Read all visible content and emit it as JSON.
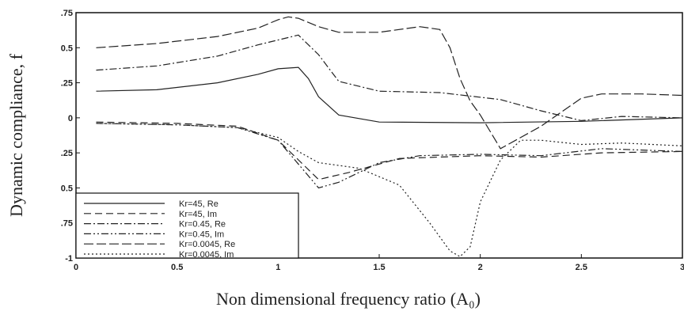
{
  "chart_data": {
    "type": "line",
    "title": "",
    "xlabel": "Non dimensional frequency ratio (A₀)",
    "ylabel": "Dynamic compliance, f",
    "xlim": [
      0,
      3
    ],
    "ylim": [
      -1,
      0.75
    ],
    "x_ticks": [
      "0",
      "0.5",
      "1",
      "1.5",
      "2",
      "2.5",
      "3"
    ],
    "y_ticks": [
      {
        "value": 0.75,
        "label": ".75"
      },
      {
        "value": 0.5,
        "label": "0.5"
      },
      {
        "value": 0.25,
        "label": ".25"
      },
      {
        "value": 0,
        "label": "0"
      },
      {
        "value": -0.25,
        "label": ".25"
      },
      {
        "value": -0.5,
        "label": "0.5"
      },
      {
        "value": -0.75,
        "label": ".75"
      },
      {
        "value": -1,
        "label": "-1"
      }
    ],
    "grid": false,
    "legend_position": "bottom-left",
    "series": [
      {
        "name": "Kr=45, Re",
        "style": "solid",
        "points": [
          [
            0.1,
            0.19
          ],
          [
            0.4,
            0.2
          ],
          [
            0.7,
            0.25
          ],
          [
            0.9,
            0.31
          ],
          [
            1.0,
            0.35
          ],
          [
            1.1,
            0.36
          ],
          [
            1.15,
            0.28
          ],
          [
            1.2,
            0.15
          ],
          [
            1.3,
            0.02
          ],
          [
            1.5,
            -0.03
          ],
          [
            2.0,
            -0.035
          ],
          [
            2.5,
            -0.025
          ],
          [
            3.0,
            0.0
          ]
        ]
      },
      {
        "name": "Kr=45, Im",
        "style": "dash",
        "points": [
          [
            0.1,
            -0.03
          ],
          [
            0.5,
            -0.04
          ],
          [
            0.8,
            -0.06
          ],
          [
            1.0,
            -0.16
          ],
          [
            1.1,
            -0.3
          ],
          [
            1.2,
            -0.44
          ],
          [
            1.35,
            -0.39
          ],
          [
            1.6,
            -0.29
          ],
          [
            2.0,
            -0.27
          ],
          [
            2.3,
            -0.28
          ],
          [
            2.6,
            -0.25
          ],
          [
            3.0,
            -0.24
          ]
        ]
      },
      {
        "name": "Kr=0.45, Re",
        "style": "dashdot",
        "points": [
          [
            0.1,
            0.34
          ],
          [
            0.4,
            0.37
          ],
          [
            0.7,
            0.44
          ],
          [
            0.9,
            0.52
          ],
          [
            1.1,
            0.59
          ],
          [
            1.2,
            0.45
          ],
          [
            1.3,
            0.26
          ],
          [
            1.5,
            0.19
          ],
          [
            1.8,
            0.18
          ],
          [
            2.1,
            0.13
          ],
          [
            2.3,
            0.05
          ],
          [
            2.5,
            -0.02
          ],
          [
            2.7,
            0.01
          ],
          [
            3.0,
            0.0
          ]
        ]
      },
      {
        "name": "Kr=0.45, Im",
        "style": "dashdotdot",
        "points": [
          [
            0.1,
            -0.04
          ],
          [
            0.5,
            -0.05
          ],
          [
            0.8,
            -0.07
          ],
          [
            1.0,
            -0.16
          ],
          [
            1.1,
            -0.33
          ],
          [
            1.2,
            -0.5
          ],
          [
            1.3,
            -0.46
          ],
          [
            1.5,
            -0.32
          ],
          [
            1.7,
            -0.27
          ],
          [
            2.0,
            -0.26
          ],
          [
            2.3,
            -0.27
          ],
          [
            2.6,
            -0.22
          ],
          [
            3.0,
            -0.24
          ]
        ]
      },
      {
        "name": "Kr=0.0045, Re",
        "style": "longdash",
        "points": [
          [
            0.1,
            0.5
          ],
          [
            0.4,
            0.53
          ],
          [
            0.7,
            0.58
          ],
          [
            0.9,
            0.64
          ],
          [
            1.0,
            0.7
          ],
          [
            1.05,
            0.72
          ],
          [
            1.1,
            0.71
          ],
          [
            1.2,
            0.65
          ],
          [
            1.3,
            0.61
          ],
          [
            1.5,
            0.61
          ],
          [
            1.7,
            0.65
          ],
          [
            1.8,
            0.63
          ],
          [
            1.85,
            0.5
          ],
          [
            1.9,
            0.28
          ],
          [
            1.95,
            0.12
          ],
          [
            2.0,
            0.02
          ],
          [
            2.1,
            -0.22
          ],
          [
            2.3,
            -0.06
          ],
          [
            2.5,
            0.14
          ],
          [
            2.6,
            0.17
          ],
          [
            2.8,
            0.17
          ],
          [
            3.0,
            0.16
          ]
        ]
      },
      {
        "name": "Kr=0.0045, Im",
        "style": "dot",
        "points": [
          [
            0.1,
            -0.04
          ],
          [
            0.5,
            -0.05
          ],
          [
            0.8,
            -0.07
          ],
          [
            1.0,
            -0.14
          ],
          [
            1.1,
            -0.24
          ],
          [
            1.2,
            -0.32
          ],
          [
            1.4,
            -0.36
          ],
          [
            1.6,
            -0.48
          ],
          [
            1.75,
            -0.75
          ],
          [
            1.85,
            -0.95
          ],
          [
            1.9,
            -0.99
          ],
          [
            1.95,
            -0.92
          ],
          [
            2.0,
            -0.6
          ],
          [
            2.1,
            -0.3
          ],
          [
            2.2,
            -0.16
          ],
          [
            2.3,
            -0.16
          ],
          [
            2.5,
            -0.19
          ],
          [
            2.7,
            -0.18
          ],
          [
            3.0,
            -0.2
          ]
        ]
      }
    ]
  }
}
